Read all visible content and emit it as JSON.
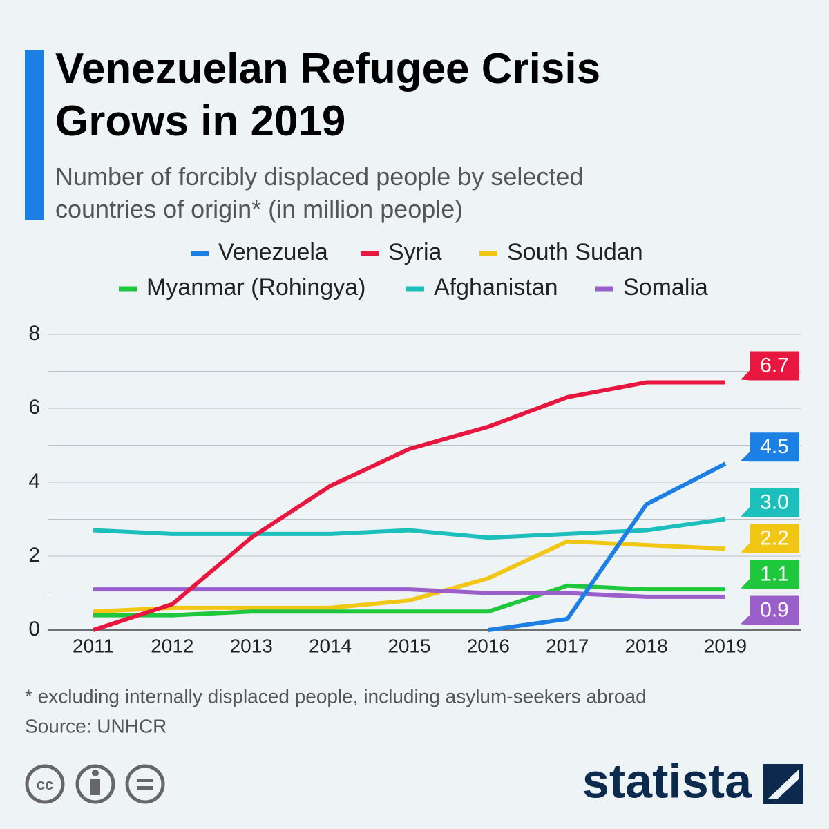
{
  "chart_data": {
    "type": "line",
    "title": "Venezuelan Refugee Crisis Grows in 2019",
    "subtitle": "Number of forcibly displaced people by selected countries of origin* (in million people)",
    "x": [
      2011,
      2012,
      2013,
      2014,
      2015,
      2016,
      2017,
      2018,
      2019
    ],
    "xlim": [
      2011,
      2019
    ],
    "xticks": [
      2011,
      2012,
      2013,
      2014,
      2015,
      2016,
      2017,
      2018,
      2019
    ],
    "ylim": [
      0,
      8
    ],
    "yticks": [
      0,
      2,
      4,
      6,
      8
    ],
    "y_minor_ticks": [
      1,
      3,
      5,
      7
    ],
    "grid": true,
    "series": [
      {
        "name": "Venezuela",
        "color": "#1b7fe3",
        "values": [
          null,
          null,
          null,
          null,
          null,
          0,
          0.3,
          3.4,
          4.5
        ],
        "value_labels": [
          null,
          null,
          null,
          null,
          null,
          null,
          null,
          null,
          "4.5"
        ]
      },
      {
        "name": "Syria",
        "color": "#e8173f",
        "values": [
          0,
          0.7,
          2.5,
          3.9,
          4.9,
          5.5,
          6.3,
          6.7,
          6.7
        ],
        "value_labels": [
          null,
          null,
          null,
          null,
          null,
          null,
          null,
          null,
          "6.7"
        ]
      },
      {
        "name": "South Sudan",
        "color": "#f2c614",
        "values": [
          0.5,
          0.6,
          0.6,
          0.6,
          0.8,
          1.4,
          2.4,
          2.3,
          2.2
        ],
        "value_labels": [
          null,
          null,
          null,
          null,
          null,
          null,
          null,
          null,
          "2.2"
        ]
      },
      {
        "name": "Myanmar (Rohingya)",
        "color": "#1fc73c",
        "values": [
          0.4,
          0.4,
          0.5,
          0.5,
          0.5,
          0.5,
          1.2,
          1.1,
          1.1
        ],
        "value_labels": [
          null,
          null,
          null,
          null,
          null,
          null,
          null,
          null,
          "1.1"
        ]
      },
      {
        "name": "Afghanistan",
        "color": "#1dbfbd",
        "values": [
          2.7,
          2.6,
          2.6,
          2.6,
          2.7,
          2.5,
          2.6,
          2.7,
          3.0
        ],
        "value_labels": [
          null,
          null,
          null,
          null,
          null,
          null,
          null,
          null,
          "3.0"
        ]
      },
      {
        "name": "Somalia",
        "color": "#9b5fc9",
        "values": [
          1.1,
          1.1,
          1.1,
          1.1,
          1.1,
          1.0,
          1.0,
          0.9,
          0.9
        ],
        "value_labels": [
          null,
          null,
          null,
          null,
          null,
          null,
          null,
          null,
          "0.9"
        ]
      }
    ],
    "legend": "top",
    "footnote": "* excluding internally displaced people, including asylum-seekers abroad",
    "source": "Source: UNHCR",
    "brand": "statista"
  }
}
